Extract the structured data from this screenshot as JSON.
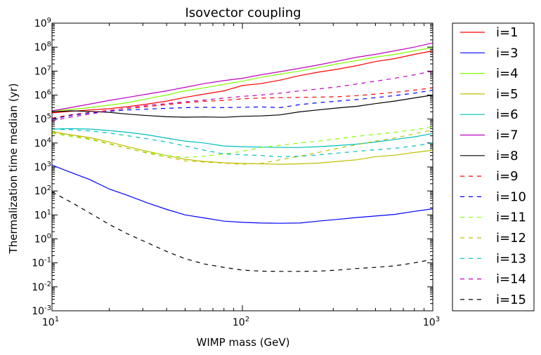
{
  "chart_data": {
    "type": "line",
    "title": "Isovector coupling",
    "xlabel": "WIMP mass (GeV)",
    "ylabel": "Thermalization time median (yr)",
    "xscale": "log",
    "yscale": "log",
    "xlim": [
      10,
      1000
    ],
    "ylim": [
      0.001,
      1000000000
    ],
    "x_ticks": [
      {
        "base": "10",
        "exp": "1",
        "value": 10
      },
      {
        "base": "10",
        "exp": "2",
        "value": 100
      },
      {
        "base": "10",
        "exp": "3",
        "value": 1000
      }
    ],
    "y_ticks": [
      {
        "base": "10",
        "exp": "-3",
        "value": 0.001
      },
      {
        "base": "10",
        "exp": "-2",
        "value": 0.01
      },
      {
        "base": "10",
        "exp": "-1",
        "value": 0.1
      },
      {
        "base": "10",
        "exp": "0",
        "value": 1
      },
      {
        "base": "10",
        "exp": "1",
        "value": 10
      },
      {
        "base": "10",
        "exp": "2",
        "value": 100
      },
      {
        "base": "10",
        "exp": "3",
        "value": 1000
      },
      {
        "base": "10",
        "exp": "4",
        "value": 10000
      },
      {
        "base": "10",
        "exp": "5",
        "value": 100000
      },
      {
        "base": "10",
        "exp": "6",
        "value": 1000000
      },
      {
        "base": "10",
        "exp": "7",
        "value": 10000000
      },
      {
        "base": "10",
        "exp": "8",
        "value": 100000000
      },
      {
        "base": "10",
        "exp": "9",
        "value": 1000000000
      }
    ],
    "legend_position": "outside-right",
    "x": [
      10,
      12.5,
      15.8,
      20,
      25,
      31.6,
      40,
      50,
      63,
      80,
      100,
      125,
      158,
      200,
      250,
      316,
      400,
      500,
      630,
      800,
      1000
    ],
    "series": [
      {
        "name": "i=1",
        "color": "#ff0000",
        "dash": "solid",
        "values": [
          180000,
          210000,
          240000,
          270000,
          330000,
          420000,
          560000,
          800000,
          1100000,
          1500000,
          2500000,
          3000000,
          4200000,
          6500000,
          9000000,
          12000000,
          17000000,
          25000000,
          33000000,
          50000000,
          70000000
        ]
      },
      {
        "name": "i=3",
        "color": "#0000ff",
        "dash": "solid",
        "values": [
          1200,
          600,
          300,
          120,
          65,
          32,
          17,
          10,
          7.5,
          5.5,
          4.9,
          4.6,
          4.5,
          4.6,
          5.5,
          6.5,
          7.8,
          9,
          10.5,
          14,
          18
        ]
      },
      {
        "name": "i=4",
        "color": "#80ff00",
        "dash": "solid",
        "values": [
          220000,
          250000,
          300000,
          380000,
          480000,
          700000,
          1000000,
          1500000,
          2000000,
          2800000,
          3800000,
          5500000,
          7500000,
          10000000,
          14000000,
          20000000,
          28000000,
          38000000,
          50000000,
          70000000,
          95000000
        ]
      },
      {
        "name": "i=5",
        "color": "#bfbf00",
        "dash": "solid",
        "values": [
          30000,
          22000,
          17000,
          11000,
          7000,
          4500,
          3000,
          2100,
          1700,
          1500,
          1400,
          1350,
          1300,
          1350,
          1450,
          1700,
          2000,
          2700,
          3100,
          4000,
          5000
        ]
      },
      {
        "name": "i=6",
        "color": "#00bfbf",
        "dash": "solid",
        "values": [
          38000,
          40000,
          38000,
          33000,
          28000,
          22000,
          16000,
          12000,
          10000,
          7500,
          7000,
          6800,
          6500,
          6500,
          7000,
          7800,
          9000,
          11000,
          14000,
          18000,
          25000
        ]
      },
      {
        "name": "i=7",
        "color": "#bf00bf",
        "dash": "solid",
        "values": [
          220000,
          300000,
          420000,
          600000,
          800000,
          1100000,
          1500000,
          2100000,
          3000000,
          4000000,
          5000000,
          7000000,
          9500000,
          13000000,
          18000000,
          26000000,
          38000000,
          50000000,
          70000000,
          100000000,
          150000000
        ]
      },
      {
        "name": "i=8",
        "color": "#000000",
        "dash": "solid",
        "values": [
          200000,
          220000,
          210000,
          190000,
          160000,
          140000,
          125000,
          120000,
          122000,
          118000,
          130000,
          135000,
          150000,
          200000,
          240000,
          290000,
          340000,
          440000,
          560000,
          760000,
          1000000
        ]
      },
      {
        "name": "i=9",
        "color": "#ff0000",
        "dash": "dashed",
        "values": [
          110000,
          150000,
          190000,
          230000,
          280000,
          330000,
          400000,
          480000,
          550000,
          600000,
          700000,
          750000,
          780000,
          800000,
          820000,
          850000,
          950000,
          1100000,
          1300000,
          1600000,
          2000000
        ]
      },
      {
        "name": "i=10",
        "color": "#0000ff",
        "dash": "dashed",
        "values": [
          100000,
          140000,
          180000,
          210000,
          240000,
          260000,
          280000,
          300000,
          310000,
          300000,
          310000,
          320000,
          300000,
          400000,
          480000,
          560000,
          650000,
          780000,
          950000,
          1200000,
          1600000
        ]
      },
      {
        "name": "i=11",
        "color": "#80ff00",
        "dash": "dashed",
        "values": [
          25000,
          19000,
          14000,
          9000,
          6000,
          4000,
          3000,
          2500,
          2800,
          3500,
          4500,
          6500,
          8000,
          10000,
          12000,
          15000,
          19000,
          23000,
          28000,
          36000,
          47000
        ]
      },
      {
        "name": "i=12",
        "color": "#bfbf00",
        "dash": "dashed",
        "values": [
          28000,
          21000,
          15000,
          9500,
          6000,
          3800,
          2600,
          1800,
          1600,
          1450,
          1300,
          1400,
          2000,
          2800,
          4000,
          6000,
          8500,
          12000,
          16000,
          24000,
          35000
        ]
      },
      {
        "name": "i=13",
        "color": "#00bfbf",
        "dash": "dashed",
        "values": [
          38000,
          36000,
          32000,
          26000,
          20000,
          15000,
          11000,
          7500,
          5000,
          3500,
          3200,
          3000,
          2700,
          2800,
          3200,
          3800,
          4500,
          5200,
          6000,
          7500,
          10000
        ]
      },
      {
        "name": "i=14",
        "color": "#bf00bf",
        "dash": "dashed",
        "values": [
          85000,
          120000,
          160000,
          220000,
          290000,
          370000,
          440000,
          520000,
          620000,
          750000,
          880000,
          1000000,
          1200000,
          1500000,
          1800000,
          2200000,
          2900000,
          3800000,
          5000000,
          7000000,
          10000000
        ]
      },
      {
        "name": "i=15",
        "color": "#000000",
        "dash": "dashed",
        "values": [
          90,
          35,
          12,
          4,
          1.6,
          0.7,
          0.3,
          0.15,
          0.09,
          0.065,
          0.05,
          0.045,
          0.044,
          0.044,
          0.045,
          0.05,
          0.058,
          0.065,
          0.075,
          0.1,
          0.14
        ]
      }
    ]
  }
}
